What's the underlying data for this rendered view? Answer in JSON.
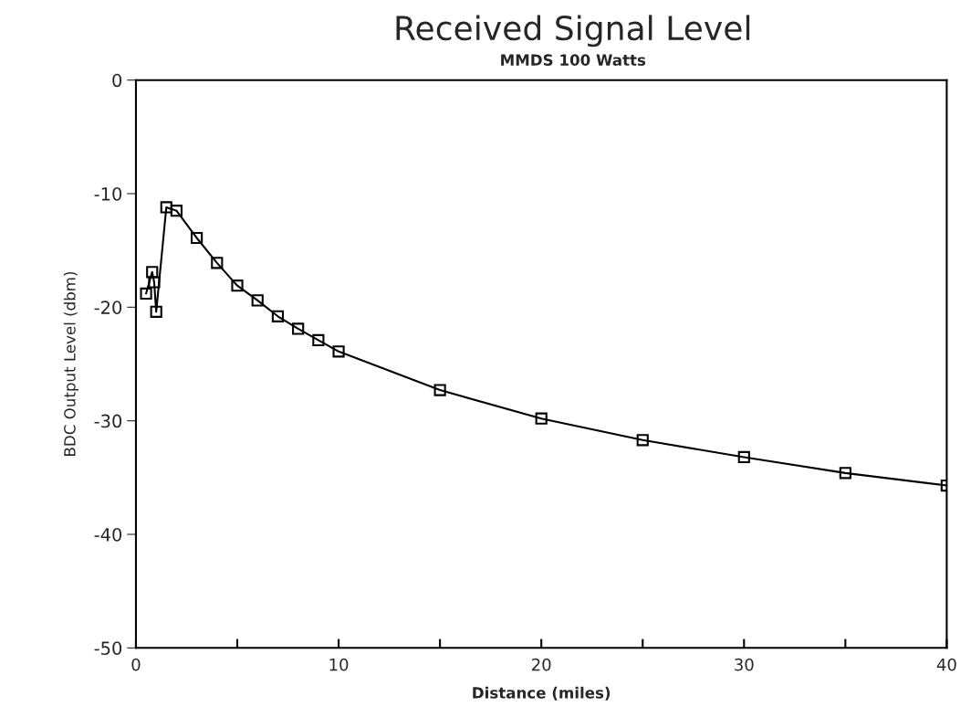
{
  "chart_data": {
    "type": "line",
    "title": "Received Signal Level",
    "subtitle": "MMDS 100 Watts",
    "xlabel": "Distance (miles)",
    "ylabel": "BDC Output Level (dbm)",
    "x": [
      0.5,
      0.8,
      0.9,
      1.0,
      1.5,
      2,
      3,
      4,
      5,
      6,
      7,
      8,
      9,
      10,
      15,
      20,
      25,
      30,
      35,
      40
    ],
    "series": [
      {
        "color": "#000000",
        "values": [
          -18.8,
          -16.9,
          -17.8,
          -20.4,
          -11.2,
          -11.5,
          -13.9,
          -16.1,
          -18.1,
          -19.4,
          -20.8,
          -21.9,
          -22.9,
          -23.9,
          -27.3,
          -29.8,
          -31.7,
          -33.2,
          -34.6,
          -35.7
        ]
      }
    ],
    "xlim": [
      0,
      40
    ],
    "ylim": [
      -50,
      0
    ],
    "xticks": [
      0,
      {
        "value": 5,
        "label": null
      },
      10,
      {
        "value": 15,
        "label": null
      },
      20,
      {
        "value": 25,
        "label": null
      },
      30,
      {
        "value": 35,
        "label": null
      },
      40
    ],
    "yticks": [
      -50,
      -40,
      -30,
      -20,
      -10,
      0
    ],
    "marker": "square",
    "line_style": "solid",
    "grid": false,
    "legend": false
  }
}
